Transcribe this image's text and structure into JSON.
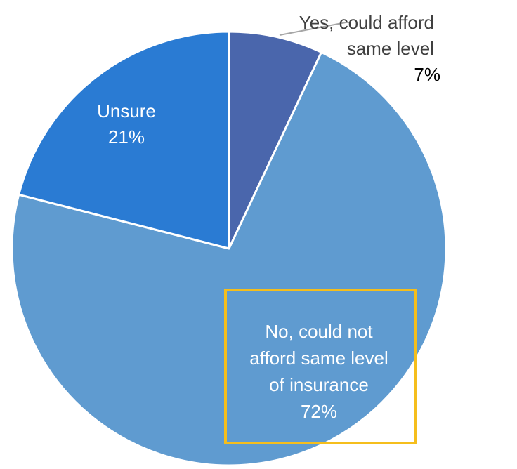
{
  "chart_data": {
    "type": "pie",
    "title": "",
    "slices": [
      {
        "label_lines": [
          "Yes, could afford",
          "same level"
        ],
        "value": 7,
        "value_label": "7%",
        "color": "#4A66AC"
      },
      {
        "label_lines": [
          "No, could not",
          "afford same level",
          "of insurance"
        ],
        "value": 72,
        "value_label": "72%",
        "color": "#5F9BD0"
      },
      {
        "label_lines": [
          "Unsure"
        ],
        "value": 21,
        "value_label": "21%",
        "color": "#2A7BD3"
      }
    ],
    "start_angle": "12 o'clock",
    "direction": "clockwise",
    "highlight": {
      "slice": 1,
      "color": "#F5BE1C"
    }
  }
}
